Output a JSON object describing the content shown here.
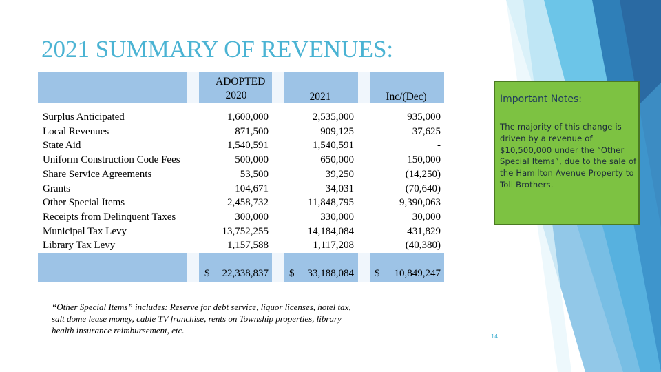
{
  "title": "2021 SUMMARY OF REVENUES:",
  "table": {
    "header": [
      "ADOPTED 2020",
      "2021",
      "Inc/(Dec)"
    ],
    "rows": [
      [
        "Surplus Anticipated",
        "1,600,000",
        "2,535,000",
        "935,000"
      ],
      [
        "Local Revenues",
        "871,500",
        "909,125",
        "37,625"
      ],
      [
        "State Aid",
        "1,540,591",
        "1,540,591",
        "-"
      ],
      [
        "Uniform Construction Code Fees",
        "500,000",
        "650,000",
        "150,000"
      ],
      [
        "Share Service Agreements",
        "53,500",
        "39,250",
        "(14,250)"
      ],
      [
        "Grants",
        "104,671",
        "34,031",
        "(70,640)"
      ],
      [
        "Other Special Items",
        "2,458,732",
        "11,848,795",
        "9,390,063"
      ],
      [
        "Receipts from Delinquent Taxes",
        "300,000",
        "330,000",
        "30,000"
      ],
      [
        "Municipal Tax Levy",
        "13,752,255",
        "14,184,084",
        "431,829"
      ],
      [
        "Library Tax Levy",
        "1,157,588",
        "1,117,208",
        "(40,380)"
      ]
    ],
    "totals": [
      [
        "$",
        "22,338,837"
      ],
      [
        "$",
        "33,188,084"
      ],
      [
        "$",
        "10,849,247"
      ]
    ]
  },
  "notes": {
    "heading": "Important Notes:",
    "body": "The majority of this change is driven by a revenue of $10,500,000 under the “Other Special Items”, due to the sale of the Hamilton Avenue Property to Toll Brothers."
  },
  "footnote": "“Other Special Items” includes: Reserve for debt service, liquor licenses, hotel tax, salt dome lease money, cable TV franchise, rents on Township properties, library health insurance reimbursement, etc.",
  "page_number": "14"
}
